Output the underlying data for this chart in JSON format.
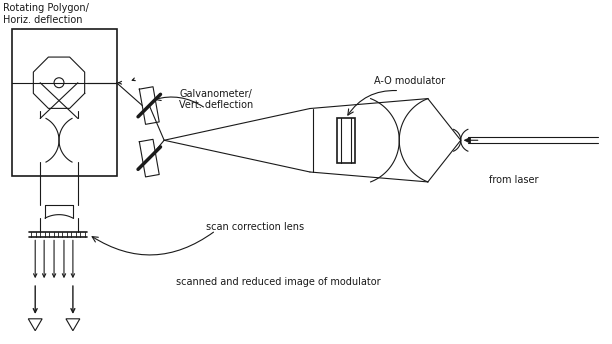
{
  "bg_color": "#ffffff",
  "line_color": "#1a1a1a",
  "fig_width": 6.12,
  "fig_height": 3.44,
  "dpi": 100,
  "labels": {
    "rotating_polygon": "Rotating Polygon/\nHoriz. deflection",
    "galvanometer": "Galvanometer/\nVert. deflection",
    "ao_modulator": "A-O modulator",
    "from_laser": "from laser",
    "scan_correction": "scan correction lens",
    "scanned_image": "scanned and reduced image of modulator"
  }
}
